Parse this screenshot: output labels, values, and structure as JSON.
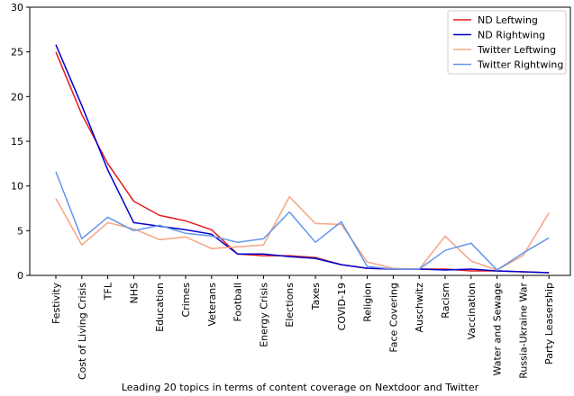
{
  "chart_data": {
    "type": "line",
    "title": "",
    "xlabel": "Leading 20 topics in terms of content coverage on Nextdoor and Twitter",
    "ylabel": "",
    "ylim": [
      0,
      30
    ],
    "yticks": [
      0,
      5,
      10,
      15,
      20,
      25,
      30
    ],
    "grid": false,
    "legend_position": "top-right",
    "categories": [
      "Festivity",
      "Cost of Living Crisis",
      "TFL",
      "NHS",
      "Education",
      "Crimes",
      "Veterans",
      "Football",
      "Energy Crisis",
      "Elections",
      "Taxes",
      "COVID-19",
      "Religion",
      "Face Covering",
      "Auschwitz",
      "Racism",
      "Vaccination",
      "Water and Sewage",
      "Russia-Ukraine War",
      "Party Leasership"
    ],
    "series": [
      {
        "name": "ND Leftwing",
        "color": "#e41a1c",
        "values": [
          25.0,
          18.0,
          12.5,
          8.3,
          6.7,
          6.1,
          5.1,
          2.4,
          2.2,
          2.2,
          2.0,
          1.2,
          0.8,
          0.7,
          0.7,
          0.7,
          0.5,
          0.5,
          0.4,
          0.3
        ]
      },
      {
        "name": "ND Rightwing",
        "color": "#0000cc",
        "values": [
          25.8,
          19.0,
          11.8,
          5.9,
          5.5,
          5.1,
          4.6,
          2.4,
          2.4,
          2.1,
          1.9,
          1.2,
          0.8,
          0.7,
          0.7,
          0.6,
          0.7,
          0.5,
          0.4,
          0.3
        ]
      },
      {
        "name": "Twitter Leftwing",
        "color": "#f4a582",
        "values": [
          8.6,
          3.4,
          5.9,
          5.2,
          4.0,
          4.3,
          3.0,
          3.2,
          3.4,
          8.8,
          5.8,
          5.7,
          1.5,
          0.8,
          0.7,
          4.4,
          1.6,
          0.6,
          2.2,
          7.0
        ]
      },
      {
        "name": "Twitter Rightwing",
        "color": "#6495ed",
        "values": [
          11.6,
          4.1,
          6.5,
          5.0,
          5.6,
          4.7,
          4.4,
          3.7,
          4.1,
          7.1,
          3.7,
          6.0,
          1.0,
          0.7,
          0.7,
          2.8,
          3.6,
          0.6,
          2.5,
          4.2
        ]
      }
    ]
  }
}
